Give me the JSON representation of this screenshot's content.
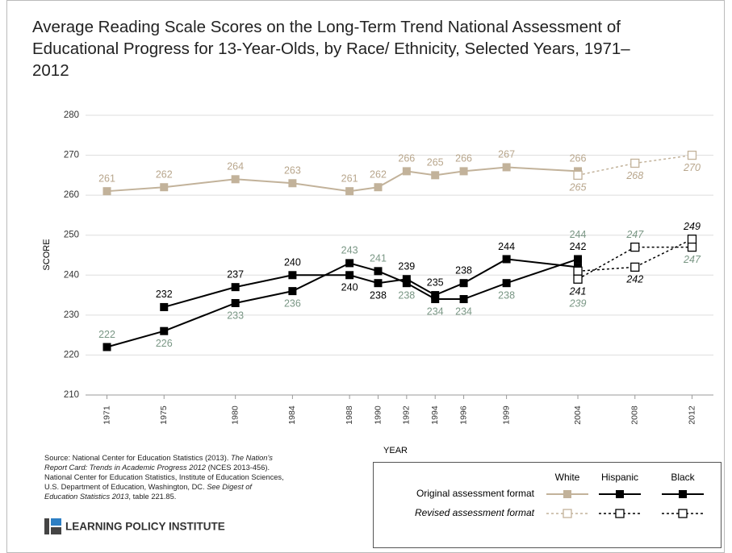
{
  "chart_data": {
    "type": "line",
    "title": "Average Reading Scale Scores on the Long-Term Trend National Assessment of Educational Progress for 13-Year-Olds, by Race/ Ethnicity, Selected Years, 1971–2012",
    "y_label": "SCORE",
    "x_label": "YEAR",
    "x": [
      1971,
      1975,
      1980,
      1984,
      1988,
      1990,
      1992,
      1994,
      1996,
      1999,
      2004,
      2008,
      2012
    ],
    "xlim": [
      1969.5,
      2013.5
    ],
    "xticks": [
      1971,
      1975,
      1980,
      1984,
      1988,
      1990,
      1992,
      1994,
      1996,
      1999,
      2004,
      2008,
      2012
    ],
    "ylim": [
      210,
      280
    ],
    "yticks": [
      210,
      220,
      230,
      240,
      250,
      260,
      270,
      280
    ],
    "grid": true,
    "series": [
      {
        "name": "White",
        "color": "#c2b29a",
        "label_color": "#b8a68c",
        "values": [
          261,
          262,
          264,
          263,
          261,
          262,
          266,
          265,
          266,
          267,
          266,
          null,
          null
        ],
        "revised_values": [
          null,
          null,
          null,
          null,
          null,
          null,
          null,
          null,
          null,
          null,
          265,
          268,
          270
        ]
      },
      {
        "name": "Hispanic",
        "color": "#000000",
        "label_color": "#000000",
        "values": [
          null,
          232,
          237,
          240,
          240,
          238,
          239,
          235,
          238,
          244,
          242,
          null,
          null
        ],
        "revised_values": [
          null,
          null,
          null,
          null,
          null,
          null,
          null,
          null,
          null,
          null,
          241,
          242,
          249
        ]
      },
      {
        "name": "Black",
        "color": "#000000",
        "label_color": "#7a9785",
        "values": [
          222,
          226,
          233,
          236,
          243,
          241,
          238,
          234,
          234,
          238,
          244,
          null,
          null
        ],
        "revised_values": [
          null,
          null,
          null,
          null,
          null,
          null,
          null,
          null,
          null,
          null,
          239,
          247,
          247
        ]
      }
    ],
    "legend_rows": [
      "Original assessment format",
      "Revised assessment format"
    ],
    "source": [
      {
        "text": "Source: National Center for Education Statistics (2013). ",
        "italic": false
      },
      {
        "text": "The Nation's Report Card: Trends in Academic Progress 2012",
        "italic": true
      },
      {
        "text": " (NCES 2013-456). National Center for Education Statistics, Institute of Education Sciences, U.S. Department of Education, Washington, DC. ",
        "italic": false
      },
      {
        "text": "See Digest of Education Statistics 2013",
        "italic": true
      },
      {
        "text": ", table 221.85.",
        "italic": false
      }
    ],
    "brand": "LEARNING POLICY INSTITUTE"
  }
}
